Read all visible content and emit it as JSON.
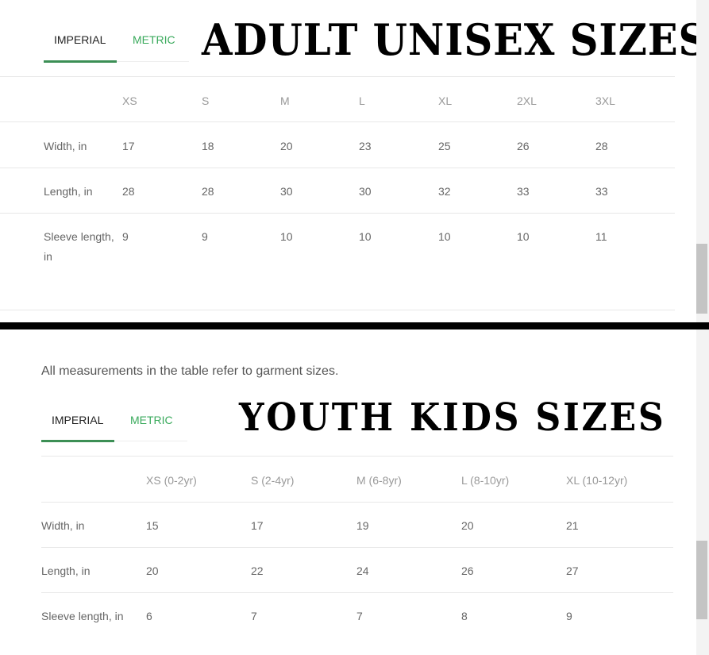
{
  "adult": {
    "title": "ADULT UNISEX SIZES",
    "tabs": [
      {
        "label": "IMPERIAL",
        "active": true
      },
      {
        "label": "METRIC",
        "active": false
      }
    ],
    "columns": [
      "XS",
      "S",
      "M",
      "L",
      "XL",
      "2XL",
      "3XL"
    ],
    "rows": [
      {
        "label": "Width, in",
        "values": [
          "17",
          "18",
          "20",
          "23",
          "25",
          "26",
          "28"
        ]
      },
      {
        "label": "Length, in",
        "values": [
          "28",
          "28",
          "30",
          "30",
          "32",
          "33",
          "33"
        ]
      },
      {
        "label": "Sleeve length,",
        "label2": "in",
        "values": [
          "9",
          "9",
          "10",
          "10",
          "10",
          "10",
          "11"
        ]
      }
    ]
  },
  "youth": {
    "note": "All measurements in the table refer to garment sizes.",
    "title": "YOUTH KIDS SIZES",
    "tabs": [
      {
        "label": "IMPERIAL",
        "active": true
      },
      {
        "label": "METRIC",
        "active": false
      }
    ],
    "columns": [
      "XS (0-2yr)",
      "S (2-4yr)",
      "M (6-8yr)",
      "L (8-10yr)",
      "XL (10-12yr)"
    ],
    "rows": [
      {
        "label": "Width, in",
        "values": [
          "15",
          "17",
          "19",
          "20",
          "21"
        ]
      },
      {
        "label": "Length, in",
        "values": [
          "20",
          "22",
          "24",
          "26",
          "27"
        ]
      },
      {
        "label": "Sleeve length, in",
        "values": [
          "6",
          "7",
          "7",
          "8",
          "9"
        ]
      }
    ]
  },
  "colors": {
    "accent": "#3aaa5c",
    "active_underline": "#3c8f55"
  }
}
